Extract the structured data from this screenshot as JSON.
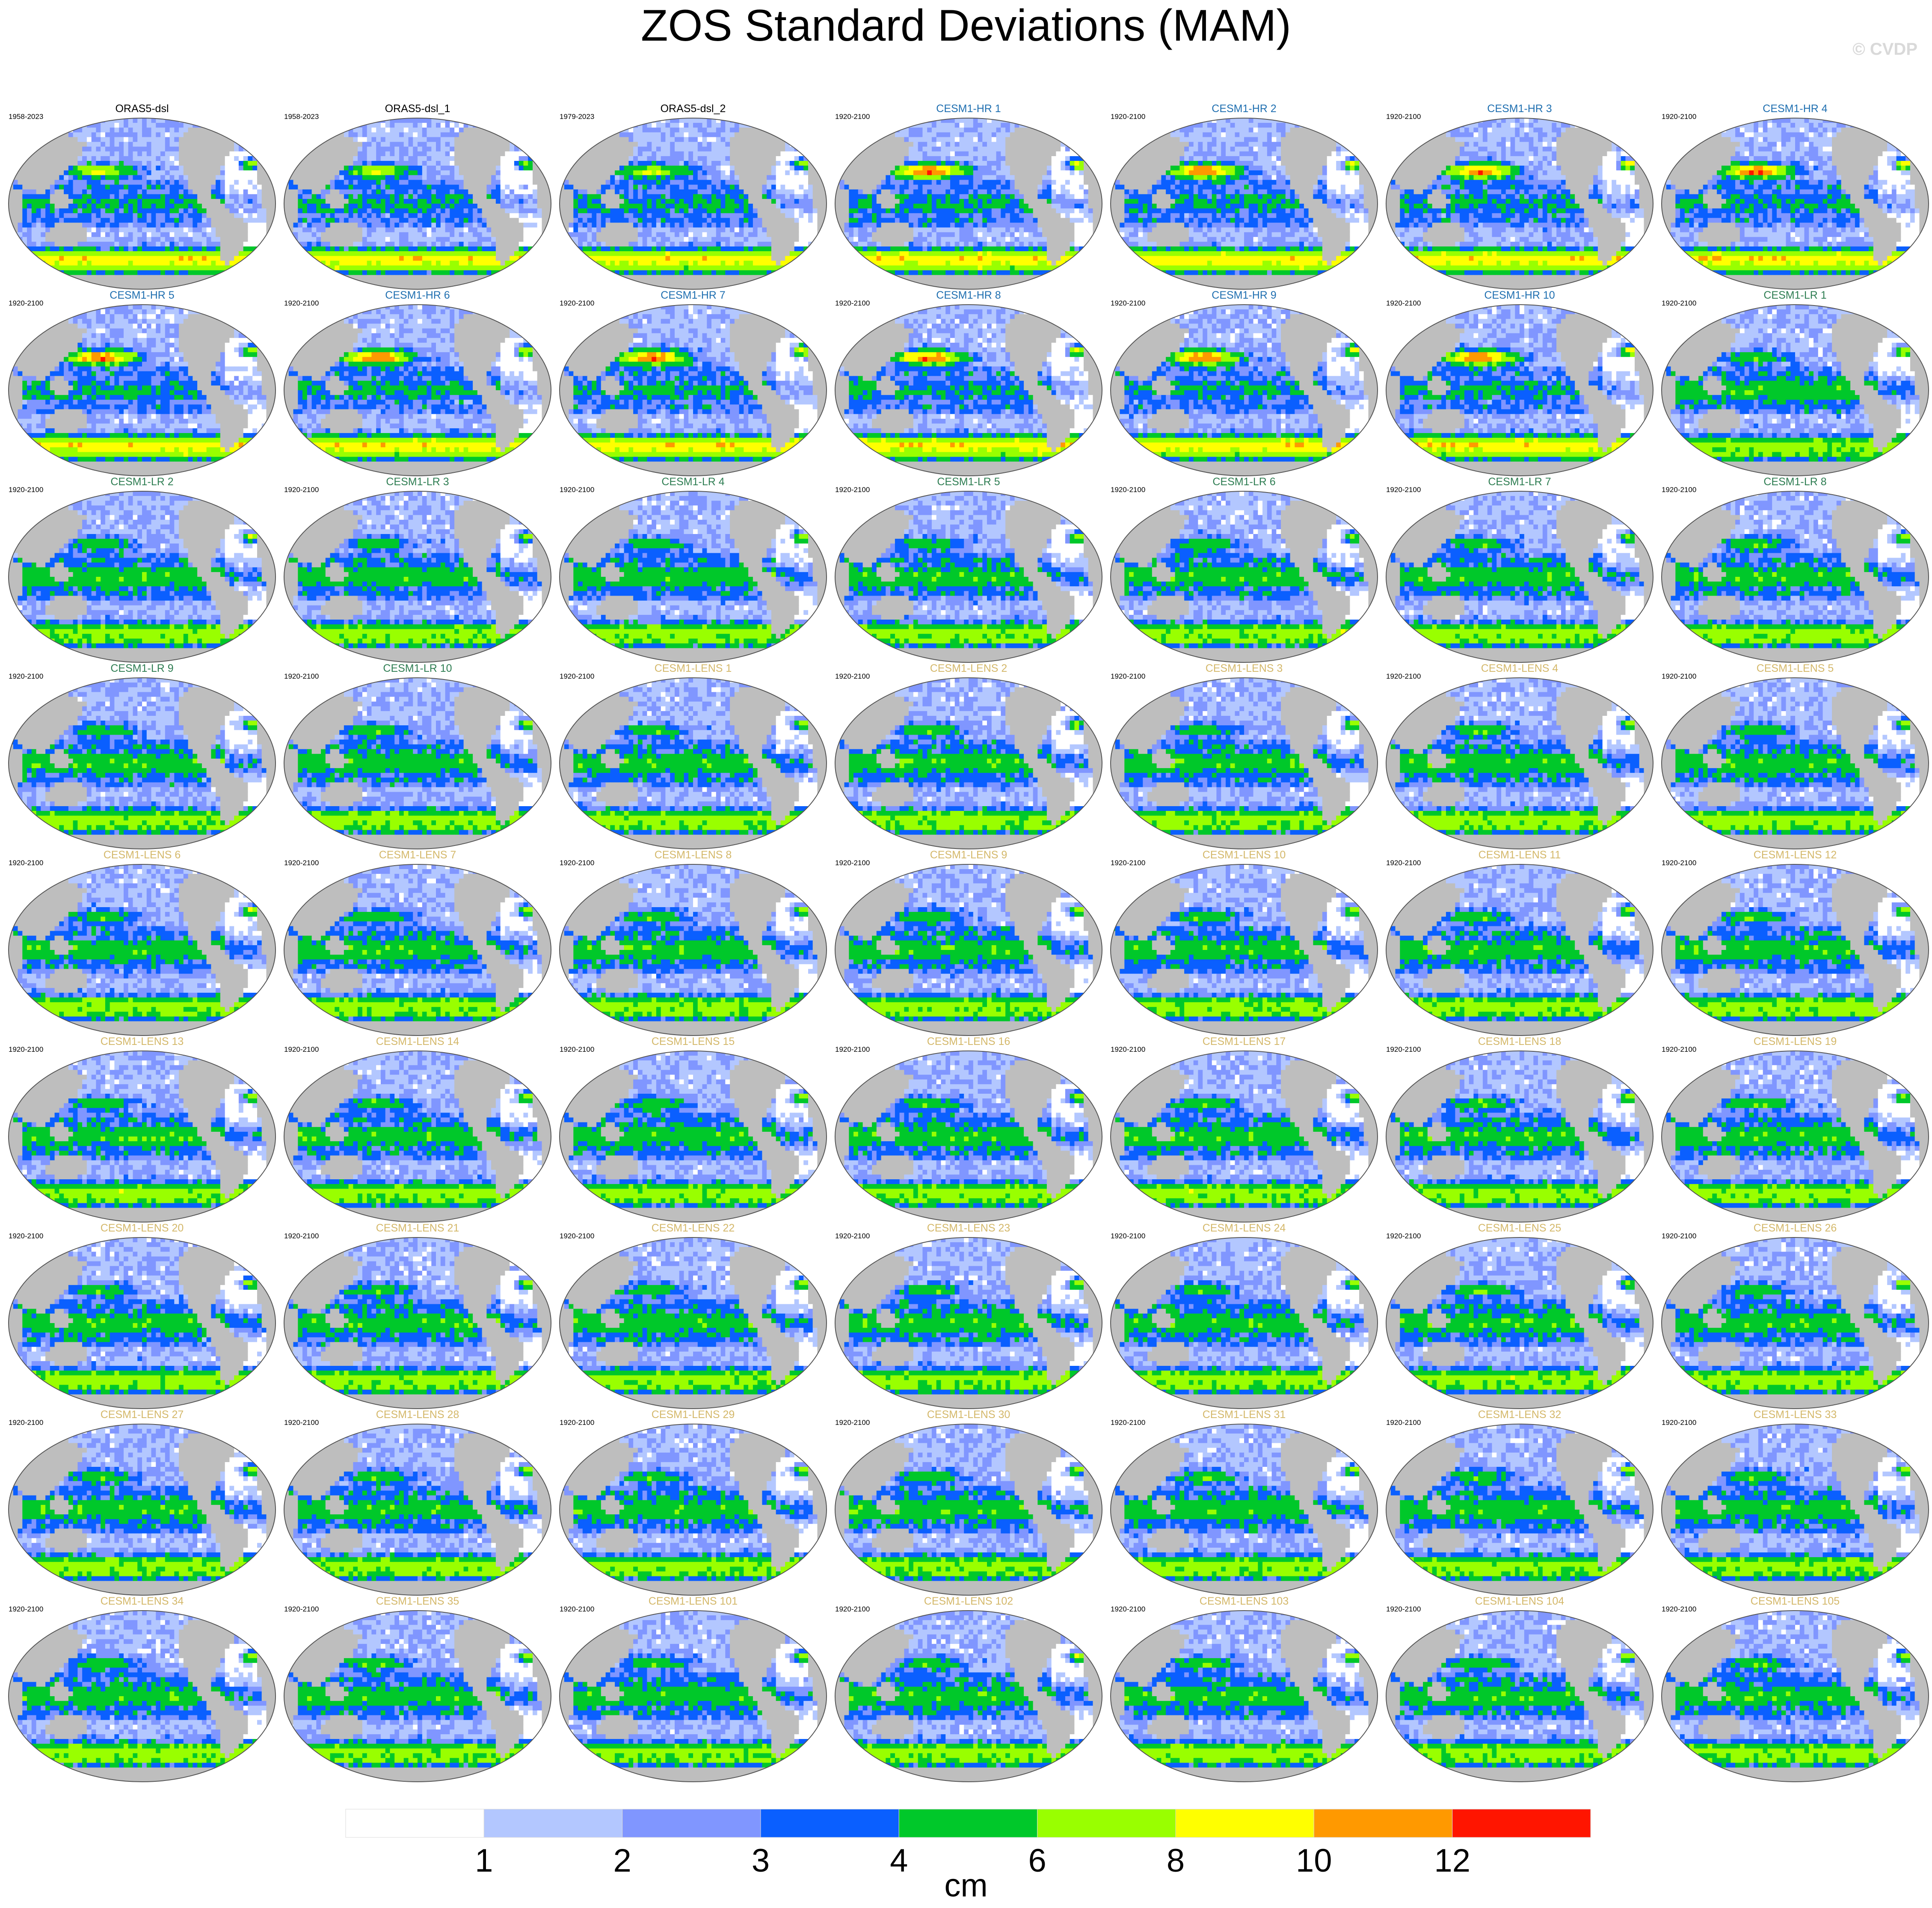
{
  "chart_data": {
    "type": "map",
    "title": "ZOS Standard Deviations (MAM)",
    "watermark": "© CVDP",
    "season": "MAM",
    "units": "cm",
    "grid": {
      "rows": 10,
      "cols": 7
    },
    "panels": [
      {
        "name": "ORAS5-dsl",
        "period": "1958-2023",
        "group": "obs"
      },
      {
        "name": "ORAS5-dsl_1",
        "period": "1958-2023",
        "group": "obs"
      },
      {
        "name": "ORAS5-dsl_2",
        "period": "1979-2023",
        "group": "obs"
      },
      {
        "name": "CESM1-HR 1",
        "period": "1920-2100",
        "group": "hr"
      },
      {
        "name": "CESM1-HR 2",
        "period": "1920-2100",
        "group": "hr"
      },
      {
        "name": "CESM1-HR 3",
        "period": "1920-2100",
        "group": "hr"
      },
      {
        "name": "CESM1-HR 4",
        "period": "1920-2100",
        "group": "hr"
      },
      {
        "name": "CESM1-HR 5",
        "period": "1920-2100",
        "group": "hr"
      },
      {
        "name": "CESM1-HR 6",
        "period": "1920-2100",
        "group": "hr"
      },
      {
        "name": "CESM1-HR 7",
        "period": "1920-2100",
        "group": "hr"
      },
      {
        "name": "CESM1-HR 8",
        "period": "1920-2100",
        "group": "hr"
      },
      {
        "name": "CESM1-HR 9",
        "period": "1920-2100",
        "group": "hr"
      },
      {
        "name": "CESM1-HR 10",
        "period": "1920-2100",
        "group": "hr"
      },
      {
        "name": "CESM1-LR 1",
        "period": "1920-2100",
        "group": "lr"
      },
      {
        "name": "CESM1-LR 2",
        "period": "1920-2100",
        "group": "lr"
      },
      {
        "name": "CESM1-LR 3",
        "period": "1920-2100",
        "group": "lr"
      },
      {
        "name": "CESM1-LR 4",
        "period": "1920-2100",
        "group": "lr"
      },
      {
        "name": "CESM1-LR 5",
        "period": "1920-2100",
        "group": "lr"
      },
      {
        "name": "CESM1-LR 6",
        "period": "1920-2100",
        "group": "lr"
      },
      {
        "name": "CESM1-LR 7",
        "period": "1920-2100",
        "group": "lr"
      },
      {
        "name": "CESM1-LR 8",
        "period": "1920-2100",
        "group": "lr"
      },
      {
        "name": "CESM1-LR 9",
        "period": "1920-2100",
        "group": "lr"
      },
      {
        "name": "CESM1-LR 10",
        "period": "1920-2100",
        "group": "lr"
      },
      {
        "name": "CESM1-LENS 1",
        "period": "1920-2100",
        "group": "lens"
      },
      {
        "name": "CESM1-LENS 2",
        "period": "1920-2100",
        "group": "lens"
      },
      {
        "name": "CESM1-LENS 3",
        "period": "1920-2100",
        "group": "lens"
      },
      {
        "name": "CESM1-LENS 4",
        "period": "1920-2100",
        "group": "lens"
      },
      {
        "name": "CESM1-LENS 5",
        "period": "1920-2100",
        "group": "lens"
      },
      {
        "name": "CESM1-LENS 6",
        "period": "1920-2100",
        "group": "lens"
      },
      {
        "name": "CESM1-LENS 7",
        "period": "1920-2100",
        "group": "lens"
      },
      {
        "name": "CESM1-LENS 8",
        "period": "1920-2100",
        "group": "lens"
      },
      {
        "name": "CESM1-LENS 9",
        "period": "1920-2100",
        "group": "lens"
      },
      {
        "name": "CESM1-LENS 10",
        "period": "1920-2100",
        "group": "lens"
      },
      {
        "name": "CESM1-LENS 11",
        "period": "1920-2100",
        "group": "lens"
      },
      {
        "name": "CESM1-LENS 12",
        "period": "1920-2100",
        "group": "lens"
      },
      {
        "name": "CESM1-LENS 13",
        "period": "1920-2100",
        "group": "lens"
      },
      {
        "name": "CESM1-LENS 14",
        "period": "1920-2100",
        "group": "lens"
      },
      {
        "name": "CESM1-LENS 15",
        "period": "1920-2100",
        "group": "lens"
      },
      {
        "name": "CESM1-LENS 16",
        "period": "1920-2100",
        "group": "lens"
      },
      {
        "name": "CESM1-LENS 17",
        "period": "1920-2100",
        "group": "lens"
      },
      {
        "name": "CESM1-LENS 18",
        "period": "1920-2100",
        "group": "lens"
      },
      {
        "name": "CESM1-LENS 19",
        "period": "1920-2100",
        "group": "lens"
      },
      {
        "name": "CESM1-LENS 20",
        "period": "1920-2100",
        "group": "lens"
      },
      {
        "name": "CESM1-LENS 21",
        "period": "1920-2100",
        "group": "lens"
      },
      {
        "name": "CESM1-LENS 22",
        "period": "1920-2100",
        "group": "lens"
      },
      {
        "name": "CESM1-LENS 23",
        "period": "1920-2100",
        "group": "lens"
      },
      {
        "name": "CESM1-LENS 24",
        "period": "1920-2100",
        "group": "lens"
      },
      {
        "name": "CESM1-LENS 25",
        "period": "1920-2100",
        "group": "lens"
      },
      {
        "name": "CESM1-LENS 26",
        "period": "1920-2100",
        "group": "lens"
      },
      {
        "name": "CESM1-LENS 27",
        "period": "1920-2100",
        "group": "lens"
      },
      {
        "name": "CESM1-LENS 28",
        "period": "1920-2100",
        "group": "lens"
      },
      {
        "name": "CESM1-LENS 29",
        "period": "1920-2100",
        "group": "lens"
      },
      {
        "name": "CESM1-LENS 30",
        "period": "1920-2100",
        "group": "lens"
      },
      {
        "name": "CESM1-LENS 31",
        "period": "1920-2100",
        "group": "lens"
      },
      {
        "name": "CESM1-LENS 32",
        "period": "1920-2100",
        "group": "lens"
      },
      {
        "name": "CESM1-LENS 33",
        "period": "1920-2100",
        "group": "lens"
      },
      {
        "name": "CESM1-LENS 34",
        "period": "1920-2100",
        "group": "lens"
      },
      {
        "name": "CESM1-LENS 35",
        "period": "1920-2100",
        "group": "lens"
      },
      {
        "name": "CESM1-LENS 101",
        "period": "1920-2100",
        "group": "lens"
      },
      {
        "name": "CESM1-LENS 102",
        "period": "1920-2100",
        "group": "lens"
      },
      {
        "name": "CESM1-LENS 103",
        "period": "1920-2100",
        "group": "lens"
      },
      {
        "name": "CESM1-LENS 104",
        "period": "1920-2100",
        "group": "lens"
      },
      {
        "name": "CESM1-LENS 105",
        "period": "1920-2100",
        "group": "lens"
      }
    ],
    "group_title_colors": {
      "obs": "#000000",
      "hr": "#1f6fb0",
      "lr": "#2e7d52",
      "lens": "#d4b86a"
    },
    "colorbar": {
      "levels": [
        1,
        2,
        3,
        4,
        6,
        8,
        10,
        12
      ],
      "tick_labels": [
        "1",
        "2",
        "3",
        "4",
        "6",
        "8",
        "10",
        "12"
      ],
      "colors": [
        "#ffffff",
        "#b3c7ff",
        "#8096ff",
        "#0a5fff",
        "#00c82a",
        "#99ff00",
        "#ffff00",
        "#ff9900",
        "#ff1500"
      ],
      "label": "cm"
    },
    "map_style": {
      "land_color": "#bebebe",
      "outline_color": "#555555"
    }
  }
}
